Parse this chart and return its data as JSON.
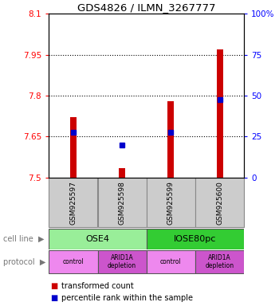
{
  "title": "GDS4826 / ILMN_3267777",
  "samples": [
    "GSM925597",
    "GSM925598",
    "GSM925599",
    "GSM925600"
  ],
  "bar_values": [
    7.72,
    7.535,
    7.78,
    7.97
  ],
  "bar_base": 7.5,
  "percentile_values": [
    7.665,
    7.62,
    7.665,
    7.785
  ],
  "ylim_left": [
    7.5,
    8.1
  ],
  "ylim_right": [
    0,
    100
  ],
  "yticks_left": [
    7.5,
    7.65,
    7.8,
    7.95,
    8.1
  ],
  "yticks_right": [
    0,
    25,
    50,
    75,
    100
  ],
  "ytick_labels_left": [
    "7.5",
    "7.65",
    "7.8",
    "7.95",
    "8.1"
  ],
  "ytick_labels_right": [
    "0",
    "25",
    "50",
    "75",
    "100%"
  ],
  "grid_yticks": [
    7.65,
    7.8,
    7.95
  ],
  "bar_color": "#cc0000",
  "percentile_color": "#0000cc",
  "cell_line_groups": [
    {
      "label": "OSE4",
      "span": [
        0,
        2
      ],
      "color": "#99ee99"
    },
    {
      "label": "IOSE80pc",
      "span": [
        2,
        4
      ],
      "color": "#33cc33"
    }
  ],
  "protocol_groups": [
    {
      "label": "control",
      "span": [
        0,
        1
      ],
      "color": "#ee88ee"
    },
    {
      "label": "ARID1A\ndepletion",
      "span": [
        1,
        2
      ],
      "color": "#cc55cc"
    },
    {
      "label": "control",
      "span": [
        2,
        3
      ],
      "color": "#ee88ee"
    },
    {
      "label": "ARID1A\ndepletion",
      "span": [
        3,
        4
      ],
      "color": "#cc55cc"
    }
  ],
  "gsm_box_color": "#cccccc",
  "legend_red_label": "transformed count",
  "legend_blue_label": "percentile rank within the sample",
  "cell_line_label": "cell line",
  "protocol_label": "protocol"
}
